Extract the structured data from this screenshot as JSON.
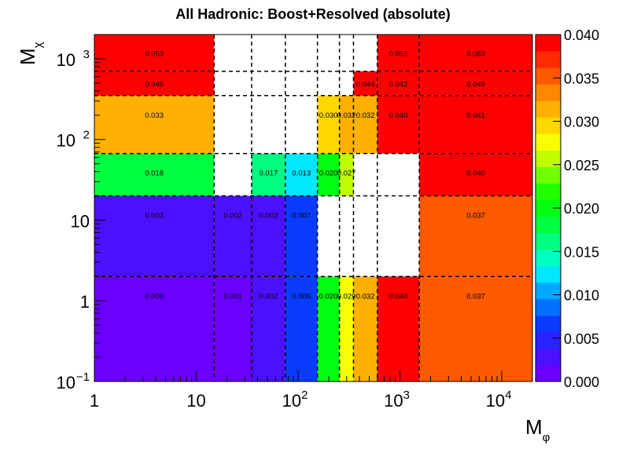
{
  "chart_data": {
    "type": "heatmap",
    "title": "All Hadronic: Boost+Resolved (absolute)",
    "xlabel_base": "M",
    "xlabel_sub": "φ",
    "ylabel_base": "M",
    "ylabel_sub": "χ",
    "x_scale": "log",
    "y_scale": "log",
    "xlim": [
      1,
      20000
    ],
    "ylim": [
      0.1,
      2000
    ],
    "zlim": [
      0.0,
      0.04
    ],
    "grid": "dashed bin boundaries",
    "x_ticks": [
      {
        "value": 1,
        "label": "1",
        "exp": ""
      },
      {
        "value": 10,
        "label": "10",
        "exp": ""
      },
      {
        "value": 100,
        "label": "10",
        "exp": "2"
      },
      {
        "value": 1000,
        "label": "10",
        "exp": "3"
      },
      {
        "value": 10000,
        "label": "10",
        "exp": "4"
      }
    ],
    "y_ticks": [
      {
        "value": 0.1,
        "label": "10",
        "exp": "−1"
      },
      {
        "value": 1,
        "label": "1",
        "exp": ""
      },
      {
        "value": 10,
        "label": "10",
        "exp": ""
      },
      {
        "value": 100,
        "label": "10",
        "exp": "2"
      },
      {
        "value": 1000,
        "label": "10",
        "exp": "3"
      }
    ],
    "x_edges": [
      1,
      15,
      35,
      75,
      155,
      255,
      350,
      600,
      1550,
      20000
    ],
    "y_edges": [
      0.1,
      2,
      20,
      67,
      350,
      700,
      2000
    ],
    "cells": [
      {
        "xi": 0,
        "yi": 0,
        "z": 0.0,
        "label": "0.000"
      },
      {
        "xi": 1,
        "yi": 0,
        "z": 0.001,
        "label": "0.001"
      },
      {
        "xi": 2,
        "yi": 0,
        "z": 0.002,
        "label": "0.002"
      },
      {
        "xi": 3,
        "yi": 0,
        "z": 0.006,
        "label": "0.006"
      },
      {
        "xi": 4,
        "yi": 0,
        "z": 0.02,
        "label": "0.020"
      },
      {
        "xi": 5,
        "yi": 0,
        "z": 0.029,
        "label": "0.029"
      },
      {
        "xi": 6,
        "yi": 0,
        "z": 0.032,
        "label": "0.032"
      },
      {
        "xi": 7,
        "yi": 0,
        "z": 0.04,
        "label": "0.040"
      },
      {
        "xi": 8,
        "yi": 0,
        "z": 0.037,
        "label": "0.037"
      },
      {
        "xi": 0,
        "yi": 1,
        "z": 0.003,
        "label": "0.003"
      },
      {
        "xi": 1,
        "yi": 1,
        "z": 0.002,
        "label": "0.002"
      },
      {
        "xi": 2,
        "yi": 1,
        "z": 0.002,
        "label": "0.002"
      },
      {
        "xi": 3,
        "yi": 1,
        "z": 0.007,
        "label": "0.007"
      },
      {
        "xi": 8,
        "yi": 1,
        "z": 0.037,
        "label": "0.037"
      },
      {
        "xi": 0,
        "yi": 2,
        "z": 0.018,
        "label": "0.018"
      },
      {
        "xi": 2,
        "yi": 2,
        "z": 0.017,
        "label": "0.017"
      },
      {
        "xi": 3,
        "yi": 2,
        "z": 0.013,
        "label": "0.013"
      },
      {
        "xi": 4,
        "yi": 2,
        "z": 0.02,
        "label": "0.020"
      },
      {
        "xi": 5,
        "yi": 2,
        "z": 0.027,
        "label": "0.027"
      },
      {
        "xi": 8,
        "yi": 2,
        "z": 0.04,
        "label": "0.040"
      },
      {
        "xi": 0,
        "yi": 3,
        "z": 0.033,
        "label": "0.033"
      },
      {
        "xi": 4,
        "yi": 3,
        "z": 0.03,
        "label": "0.030"
      },
      {
        "xi": 5,
        "yi": 3,
        "z": 0.032,
        "label": "0.032"
      },
      {
        "xi": 6,
        "yi": 3,
        "z": 0.032,
        "label": "0.032"
      },
      {
        "xi": 7,
        "yi": 3,
        "z": 0.04,
        "label": "0.040"
      },
      {
        "xi": 8,
        "yi": 3,
        "z": 0.041,
        "label": "0.041"
      },
      {
        "xi": 0,
        "yi": 4,
        "z": 0.045,
        "label": "0.045"
      },
      {
        "xi": 6,
        "yi": 4,
        "z": 0.044,
        "label": "0.044"
      },
      {
        "xi": 7,
        "yi": 4,
        "z": 0.042,
        "label": "0.042"
      },
      {
        "xi": 8,
        "yi": 4,
        "z": 0.049,
        "label": "0.049"
      },
      {
        "xi": 0,
        "yi": 5,
        "z": 0.053,
        "label": "0.053"
      },
      {
        "xi": 7,
        "yi": 5,
        "z": 0.053,
        "label": "0.053"
      },
      {
        "xi": 8,
        "yi": 5,
        "z": 0.053,
        "label": "0.053"
      }
    ],
    "colorbar": {
      "ticks": [
        "0.000",
        "0.005",
        "0.010",
        "0.015",
        "0.020",
        "0.025",
        "0.030",
        "0.035",
        "0.040"
      ],
      "colors": [
        "#6a00ff",
        "#4b11ff",
        "#2a22ff",
        "#0a3cff",
        "#0070ff",
        "#00a8ff",
        "#00e8ff",
        "#00ffc0",
        "#00ff80",
        "#00ff40",
        "#00ff10",
        "#20ff00",
        "#70ff00",
        "#c0ff00",
        "#f8ff00",
        "#ffd800",
        "#ffb000",
        "#ff8800",
        "#ff5a00",
        "#ff2a00",
        "#ff0000"
      ]
    }
  }
}
